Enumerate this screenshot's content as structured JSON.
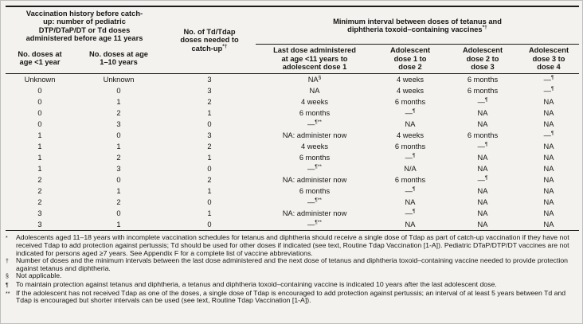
{
  "document": {
    "background_color": "#f3f2ee",
    "text_color": "#161616",
    "rule_color": "#1c1c1c"
  },
  "table": {
    "group_headers": {
      "history": "Vaccination history before catch-up: number of pediatric DTP/DTaP/DT or Td doses administered before age 11 years",
      "doses_needed": {
        "text": "No. of Td/Tdap doses needed to catch-up",
        "sup": "*†"
      },
      "min_interval": {
        "text": "Minimum interval between doses of tetanus and diphtheria toxoid–containing vaccines",
        "sup": "*†"
      }
    },
    "column_headers": [
      "No. doses at age <1 year",
      "No. doses at age 1–10 years",
      "Last dose administered at age <11 years to adolescent dose 1",
      "Adolescent dose 1 to dose 2",
      "Adolescent dose 2 to dose 3",
      "Adolescent dose 3 to dose 4"
    ],
    "rows": [
      [
        "Unknown",
        "Unknown",
        "3",
        "NA§",
        "4 weeks",
        "6 months",
        "—¶"
      ],
      [
        "0",
        "0",
        "3",
        "NA",
        "4 weeks",
        "6 months",
        "—¶"
      ],
      [
        "0",
        "1",
        "2",
        "4 weeks",
        "6 months",
        "—¶",
        "NA"
      ],
      [
        "0",
        "2",
        "1",
        "6 months",
        "—¶",
        "NA",
        "NA"
      ],
      [
        "0",
        "3",
        "0",
        "—¶**",
        "NA",
        "NA",
        "NA"
      ],
      [
        "1",
        "0",
        "3",
        "NA: administer now",
        "4 weeks",
        "6 months",
        "—¶"
      ],
      [
        "1",
        "1",
        "2",
        "4 weeks",
        "6 months",
        "—¶",
        "NA"
      ],
      [
        "1",
        "2",
        "1",
        "6 months",
        "—¶",
        "NA",
        "NA"
      ],
      [
        "1",
        "3",
        "0",
        "—¶**",
        "N/A",
        "NA",
        "NA"
      ],
      [
        "2",
        "0",
        "2",
        "NA: administer now",
        "6 months",
        "—¶",
        "NA"
      ],
      [
        "2",
        "1",
        "1",
        "6 months",
        "—¶",
        "NA",
        "NA"
      ],
      [
        "2",
        "2",
        "0",
        "—¶**",
        "NA",
        "NA",
        "NA"
      ],
      [
        "3",
        "0",
        "1",
        "NA: administer now",
        "—¶",
        "NA",
        "NA"
      ],
      [
        "3",
        "1",
        "0",
        "—¶**",
        "NA",
        "NA",
        "NA"
      ]
    ]
  },
  "footnotes": [
    {
      "marker": "*",
      "text": "Adolescents aged 11–18 years with incomplete vaccination schedules for tetanus and diphtheria should receive a single dose of Tdap as part of catch-up vaccination if they have not received Tdap to add protection against pertussis; Td should be used for other doses if indicated (see text, Routine Tdap Vaccination [1-A]). Pediatric DTaP/DTP/DT vaccines are not indicated for persons aged ≥7 years. See Appendix F for a complete list of vaccine abbreviations."
    },
    {
      "marker": "†",
      "text": "Number of doses and the minimum intervals between the last dose administered and the next dose of tetanus and diphtheria toxoid–containing vaccine needed to provide protection against tetanus and diphtheria."
    },
    {
      "marker": "§",
      "text": "Not applicable."
    },
    {
      "marker": "¶",
      "text": "To maintain protection against tetanus and diphtheria, a tetanus and diphtheria toxoid–containing vaccine is indicated 10 years after the last adolescent dose."
    },
    {
      "marker": "**",
      "text": "If the adolescent has not received Tdap as one of the doses, a single dose of Tdap is encouraged to add protection against pertussis; an interval of at least 5 years between Td and Tdap is encouraged but shorter intervals can be used (see text, Routine Tdap Vaccination [1-A])."
    }
  ]
}
